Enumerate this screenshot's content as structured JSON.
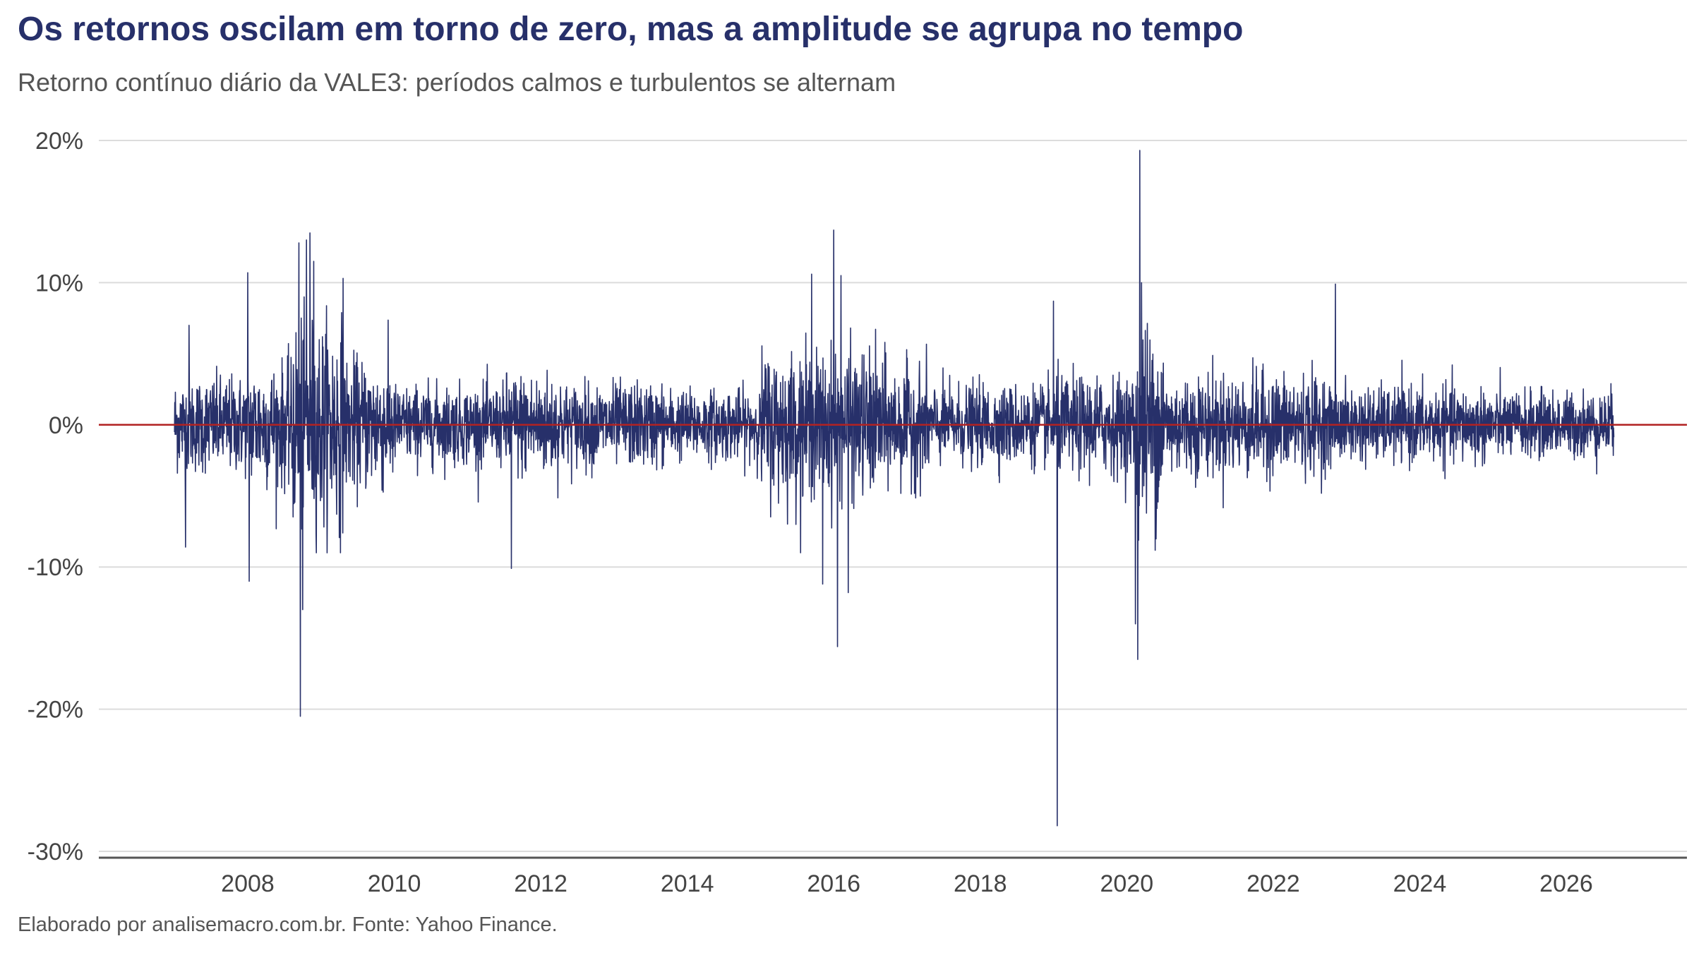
{
  "title": "Os retornos oscilam em torno de zero, mas a amplitude se agrupa no tempo",
  "subtitle": "Retorno contínuo diário da VALE3: períodos calmos e turbulentos se alternam",
  "caption": "Elaborado por analisemacro.com.br. Fonte: Yahoo Finance.",
  "colors": {
    "series": "#27306a",
    "zero_line": "#b22222",
    "grid": "#dcdcdc",
    "axis": "#555555"
  },
  "chart_data": {
    "type": "line",
    "title": "Os retornos oscilam em torno de zero, mas a amplitude se agrupa no tempo",
    "subtitle": "Retorno contínuo diário da VALE3: períodos calmos e turbulentos se alternam",
    "xlabel": "",
    "ylabel": "",
    "x_unit": "year",
    "xlim": [
      2006.5,
      2027.5
    ],
    "ylim": [
      -30.5,
      20.5
    ],
    "y_unit": "%",
    "x_ticks": [
      2008,
      2010,
      2012,
      2014,
      2016,
      2018,
      2020,
      2022,
      2024,
      2026
    ],
    "x_tick_labels": [
      "2008",
      "2010",
      "2012",
      "2014",
      "2016",
      "2018",
      "2020",
      "2022",
      "2024",
      "2026"
    ],
    "y_ticks": [
      20,
      10,
      0,
      -10,
      -20,
      -30
    ],
    "y_tick_labels": [
      "20%",
      "10%",
      "0%",
      "-10%",
      "-20%",
      "-30%"
    ],
    "grid": "horizontal",
    "reference_line": 0,
    "series": [
      {
        "values_note_excluded": true,
        "x_range": [
          2007.0,
          2026.65
        ],
        "volatility_regimes": [
          {
            "from": 2007.0,
            "to": 2008.0,
            "sigma": 2.2
          },
          {
            "from": 2008.0,
            "to": 2008.6,
            "sigma": 2.8
          },
          {
            "from": 2008.6,
            "to": 2009.3,
            "sigma": 4.8
          },
          {
            "from": 2009.3,
            "to": 2010.0,
            "sigma": 3.0
          },
          {
            "from": 2010.0,
            "to": 2011.5,
            "sigma": 1.8
          },
          {
            "from": 2011.5,
            "to": 2012.3,
            "sigma": 2.4
          },
          {
            "from": 2012.3,
            "to": 2013.7,
            "sigma": 1.9
          },
          {
            "from": 2013.7,
            "to": 2015.0,
            "sigma": 1.6
          },
          {
            "from": 2015.0,
            "to": 2016.7,
            "sigma": 3.3
          },
          {
            "from": 2016.7,
            "to": 2017.3,
            "sigma": 2.6
          },
          {
            "from": 2017.3,
            "to": 2019.0,
            "sigma": 1.8
          },
          {
            "from": 2019.0,
            "to": 2020.1,
            "sigma": 2.2
          },
          {
            "from": 2020.1,
            "to": 2020.5,
            "sigma": 4.5
          },
          {
            "from": 2020.5,
            "to": 2022.7,
            "sigma": 2.3
          },
          {
            "from": 2022.7,
            "to": 2025.0,
            "sigma": 1.7
          },
          {
            "from": 2025.0,
            "to": 2026.65,
            "sigma": 1.5
          }
        ],
        "extremes": [
          {
            "x": 2007.15,
            "y": -8.6
          },
          {
            "x": 2007.2,
            "y": 7.0
          },
          {
            "x": 2008.0,
            "y": 10.7
          },
          {
            "x": 2008.02,
            "y": -11.0
          },
          {
            "x": 2008.72,
            "y": -20.5
          },
          {
            "x": 2008.7,
            "y": 12.8
          },
          {
            "x": 2008.75,
            "y": -13.0
          },
          {
            "x": 2008.8,
            "y": 13.0
          },
          {
            "x": 2008.85,
            "y": 13.5
          },
          {
            "x": 2008.9,
            "y": 11.5
          },
          {
            "x": 2009.3,
            "y": 10.3
          },
          {
            "x": 2011.6,
            "y": -10.1
          },
          {
            "x": 2015.7,
            "y": 10.6
          },
          {
            "x": 2015.85,
            "y": -11.2
          },
          {
            "x": 2016.0,
            "y": 13.7
          },
          {
            "x": 2016.05,
            "y": -15.6
          },
          {
            "x": 2016.1,
            "y": 10.5
          },
          {
            "x": 2016.2,
            "y": -11.8
          },
          {
            "x": 2019.05,
            "y": -28.2
          },
          {
            "x": 2019.0,
            "y": 8.7
          },
          {
            "x": 2020.18,
            "y": 19.3
          },
          {
            "x": 2020.15,
            "y": -16.5
          },
          {
            "x": 2020.2,
            "y": 10.0
          },
          {
            "x": 2020.12,
            "y": -14.0
          },
          {
            "x": 2022.85,
            "y": 9.9
          }
        ]
      }
    ]
  }
}
